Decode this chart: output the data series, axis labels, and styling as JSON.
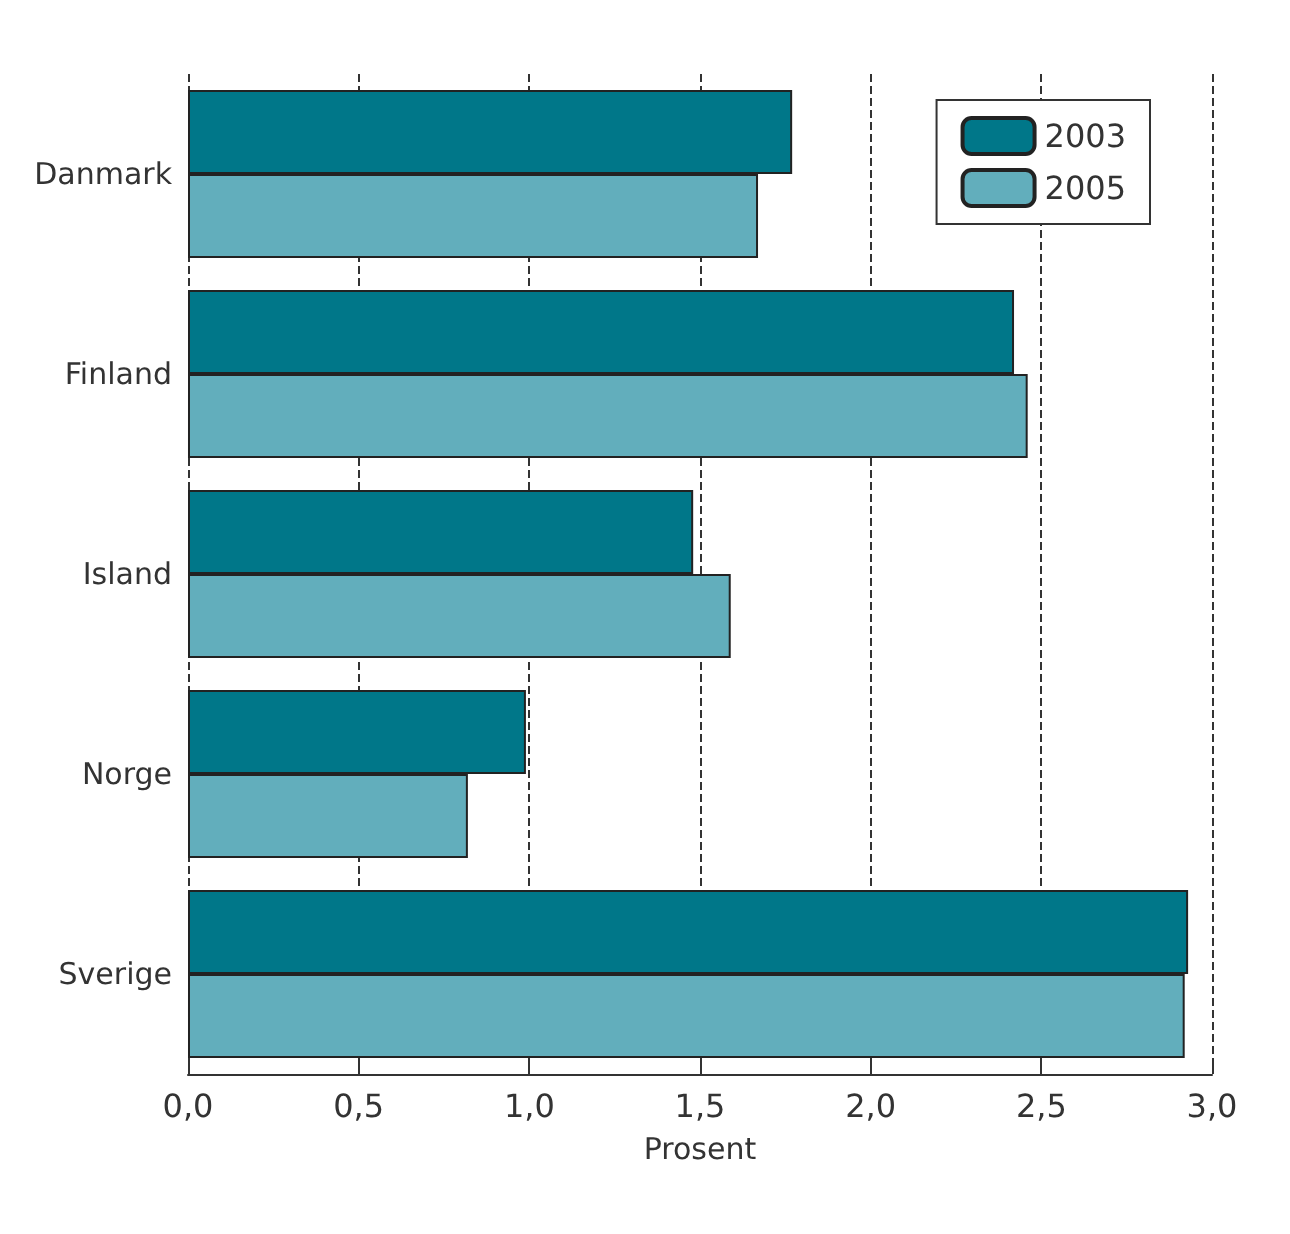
{
  "chart_data": {
    "type": "bar",
    "orientation": "horizontal",
    "xlabel": "Prosent",
    "categories": [
      "Danmark",
      "Finland",
      "Island",
      "Norge",
      "Sverige"
    ],
    "series": [
      {
        "name": "2003",
        "color": "#007789",
        "values": [
          1.77,
          2.42,
          1.48,
          0.99,
          2.93
        ]
      },
      {
        "name": "2005",
        "color": "#62aebc",
        "values": [
          1.67,
          2.46,
          1.59,
          0.82,
          2.92
        ]
      }
    ],
    "xlim": [
      0,
      3
    ],
    "xticks": [
      {
        "value": 0,
        "label": "0,0"
      },
      {
        "value": 0.5,
        "label": "0,5"
      },
      {
        "value": 1,
        "label": "1,0"
      },
      {
        "value": 1.5,
        "label": "1,5"
      },
      {
        "value": 2,
        "label": "2,0"
      },
      {
        "value": 2.5,
        "label": "2,5"
      },
      {
        "value": 3,
        "label": "3,0"
      }
    ],
    "grid": "x",
    "legend": "top right"
  }
}
